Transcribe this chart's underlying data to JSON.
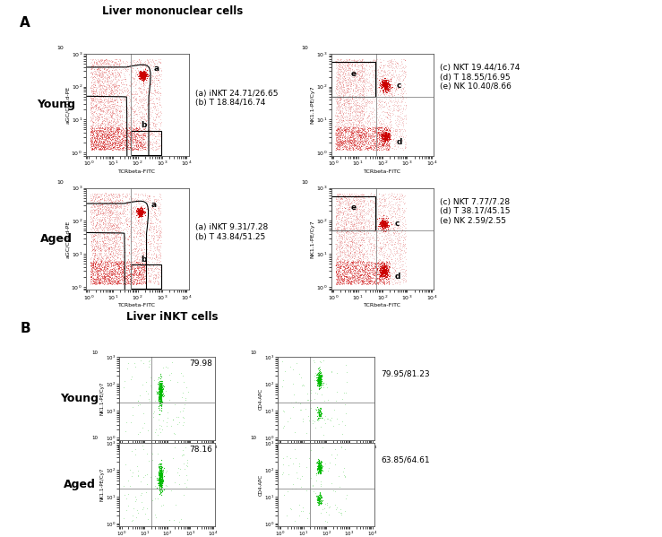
{
  "title_A": "Liver mononuclear cells",
  "title_B": "Liver iNKT cells",
  "row_labels": [
    "Young",
    "Aged"
  ],
  "ann_A_left_young": "(a) iNKT 24.71/26.65\n(b) T 18.84/16.74",
  "ann_A_right_young": "(c) NKT 19.44/16.74\n(d) T 18.55/16.95\n(e) NK 10.40/8.66",
  "ann_A_left_aged": "(a) iNKT 9.31/7.28\n(b) T 43.84/51.25",
  "ann_A_right_aged": "(c) NKT 7.77/7.28\n(d) T 38.17/45.15\n(e) NK 2.59/2.55",
  "val_B_young_left": "79.98",
  "val_B_young_right": "79.95/81.23",
  "val_B_aged_left": "78.16",
  "val_B_aged_right": "63.85/64.61",
  "xlabel": "TCRbeta-FITC",
  "ylabel_A_left": "aGC/CD1d-PE",
  "ylabel_A_right": "NK1.1-PE/Cy7",
  "ylabel_B_left": "NK1.1-PE/Cy7",
  "ylabel_B_right": "CD4-APC",
  "red": "#CC0000",
  "green": "#00BB00",
  "white": "#FFFFFF"
}
